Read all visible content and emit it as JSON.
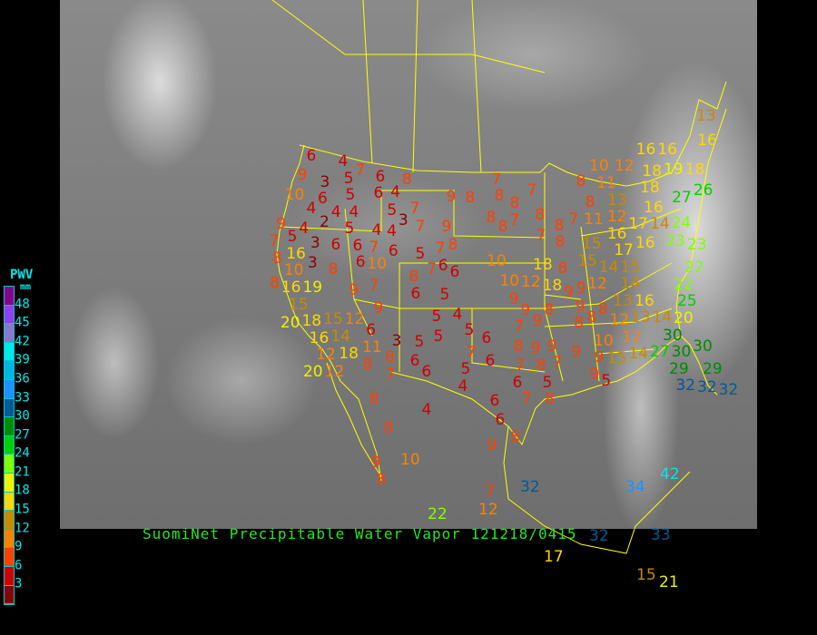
{
  "title": "SuomiNet Precipitable Water Vapor 121218/0415",
  "legend": {
    "title": "PWV",
    "unit": "mm",
    "labels": [
      "48",
      "45",
      "42",
      "39",
      "36",
      "33",
      "30",
      "27",
      "24",
      "21",
      "18",
      "15",
      "12",
      "9",
      "6",
      "3"
    ],
    "colors_top_to_bottom": [
      "#8b008b",
      "#9040f0",
      "#8878d0",
      "#00e8e8",
      "#00b4e6",
      "#1e90ff",
      "#005a96",
      "#008c00",
      "#00d000",
      "#80ff00",
      "#f0f000",
      "#ffd700",
      "#c88a00",
      "#ff8000",
      "#ff4000",
      "#d00000",
      "#8b0000"
    ]
  },
  "map_colors": {
    "background": "#7c7c7c",
    "borders": "#ffff00"
  },
  "stations": [
    6,
    9,
    4,
    7,
    6,
    8,
    3,
    5,
    5,
    10,
    6,
    6,
    4,
    4,
    4,
    4,
    5,
    7,
    2,
    3,
    9,
    4,
    5,
    4,
    4,
    7,
    9,
    7,
    5,
    3,
    6,
    6,
    7,
    6,
    5,
    7,
    8,
    8,
    16,
    3,
    8,
    6,
    10,
    6,
    6,
    10,
    8,
    16,
    19,
    8,
    7,
    6,
    5,
    9,
    7,
    15,
    9,
    20,
    18,
    15,
    12,
    6,
    16,
    14,
    11,
    3,
    5,
    5,
    18,
    12,
    20,
    12,
    8,
    7,
    6,
    5,
    4,
    5,
    6,
    7,
    6,
    8,
    6,
    5,
    4,
    8,
    4,
    8,
    10,
    9,
    8,
    6,
    6,
    6,
    7,
    8,
    9,
    5,
    8,
    7,
    12,
    7,
    32,
    22,
    32,
    17,
    15,
    21,
    33,
    34,
    42,
    9,
    8,
    7,
    8,
    8,
    7,
    8,
    7,
    8,
    8,
    7,
    8,
    10,
    10,
    12,
    18,
    18,
    8,
    9,
    9,
    9,
    9,
    9,
    8,
    7,
    8,
    9,
    8,
    9,
    9,
    8,
    9,
    7,
    9,
    9,
    5,
    8,
    8,
    10,
    8,
    11,
    13,
    12,
    7,
    8,
    11,
    16,
    17,
    16,
    14,
    16,
    24,
    23,
    15,
    15,
    17,
    15,
    14,
    14,
    16,
    12,
    13,
    8,
    12,
    10,
    12,
    14,
    13,
    14,
    20,
    25,
    22,
    22,
    23,
    27,
    26,
    18,
    19,
    18,
    16,
    18,
    12,
    13,
    16,
    16,
    30,
    27,
    30,
    30,
    29,
    29,
    32,
    32,
    32,
    15
  ]
}
